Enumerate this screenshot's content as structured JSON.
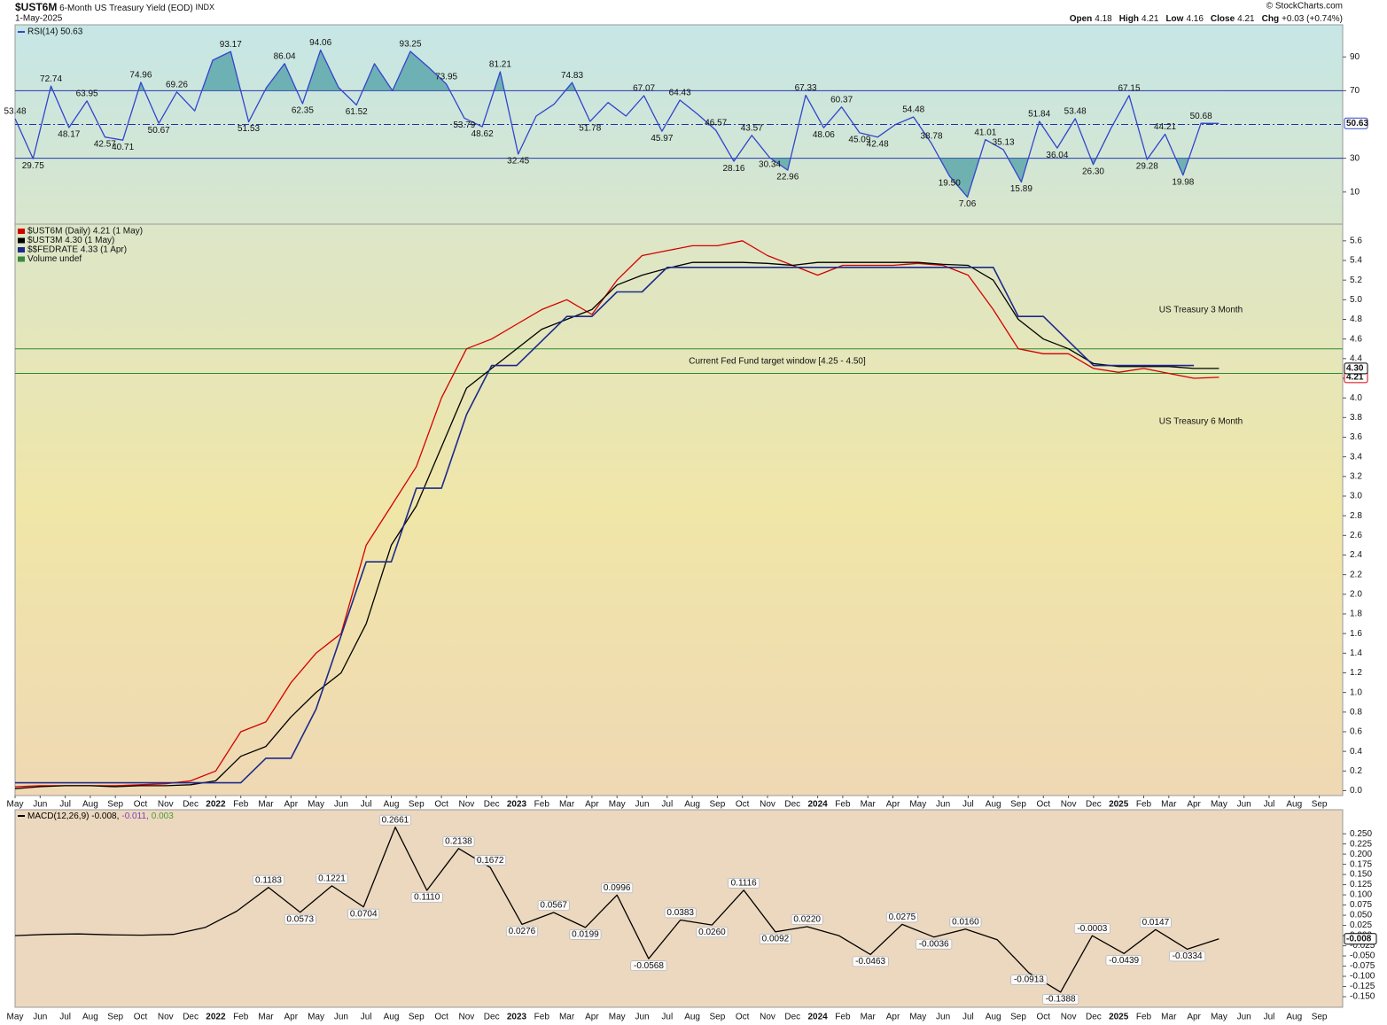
{
  "header": {
    "symbol": "$UST6M",
    "description": "6-Month US Treasury Yield (EOD)",
    "exchange": "INDX",
    "date": "1-May-2025",
    "quote": [
      {
        "label": "Open",
        "value": "4.18"
      },
      {
        "label": "High",
        "value": "4.21"
      },
      {
        "label": "Low",
        "value": "4.16"
      },
      {
        "label": "Close",
        "value": "4.21"
      },
      {
        "label": "Chg",
        "value": "+0.03 (+0.74%)"
      }
    ],
    "credit": "© StockCharts.com"
  },
  "chart_data": [
    {
      "type": "line",
      "title": "RSI(14) 50.63",
      "ylim": [
        -9,
        109
      ],
      "yticks": [
        10,
        30,
        70,
        90
      ],
      "levels": [
        30,
        70
      ],
      "center_line": 50,
      "fill_color": "#4e9fa6",
      "level_color": "#2233aa",
      "series": [
        {
          "color": "#3344cc",
          "last_label": "50.63",
          "values": [
            53.48,
            29.75,
            72.74,
            48.17,
            63.95,
            42.57,
            40.71,
            74.96,
            50.67,
            69.26,
            58,
            88,
            93.17,
            51.53,
            72,
            86.04,
            62.35,
            94.06,
            72,
            61.52,
            86,
            70,
            93.25,
            84,
            73.95,
            53.79,
            48.62,
            81.21,
            32.45,
            55,
            62,
            74.83,
            51.78,
            63,
            55,
            67.07,
            45.97,
            64.43,
            56,
            46.57,
            28.16,
            43.57,
            30.34,
            22.96,
            67.33,
            48.06,
            60.37,
            45.09,
            42.48,
            50,
            54.48,
            38.78,
            19.5,
            7.06,
            41.01,
            35.13,
            15.89,
            51.84,
            36.04,
            53.48,
            26.3,
            48,
            67.15,
            29.28,
            44.21,
            19.98,
            50.68,
            50.63
          ],
          "value_labels": [
            "53.48",
            "29.75",
            "72.74",
            "48.17",
            "63.95",
            "42.57",
            "40.71",
            "74.96",
            "50.67",
            "69.26",
            null,
            null,
            "93.17",
            "51.53",
            null,
            "86.04",
            "62.35",
            "94.06",
            null,
            "61.52",
            null,
            null,
            "93.25",
            null,
            "73.95",
            "53.79",
            "48.62",
            "81.21",
            "32.45",
            null,
            null,
            "74.83",
            "51.78",
            null,
            null,
            "67.07",
            "45.97",
            "64.43",
            null,
            "46.57",
            "28.16",
            "43.57",
            "30.34",
            "22.96",
            "67.33",
            "48.06",
            "60.37",
            "45.09",
            "42.48",
            null,
            "54.48",
            "38.78",
            "19.50",
            "7.06",
            "41.01",
            "35.13",
            "15.89",
            "51.84",
            "36.04",
            "53.48",
            "26.30",
            null,
            "67.15",
            "29.28",
            "44.21",
            "19.98",
            "50.68",
            null
          ]
        }
      ]
    },
    {
      "type": "line",
      "categories": [
        "May",
        "Jun",
        "Jul",
        "Aug",
        "Sep",
        "Oct",
        "Nov",
        "Dec",
        "2022",
        "Feb",
        "Mar",
        "Apr",
        "May",
        "Jun",
        "Jul",
        "Aug",
        "Sep",
        "Oct",
        "Nov",
        "Dec",
        "2023",
        "Feb",
        "Mar",
        "Apr",
        "May",
        "Jun",
        "Jul",
        "Aug",
        "Sep",
        "Oct",
        "Nov",
        "Dec",
        "2024",
        "Feb",
        "Mar",
        "Apr",
        "May",
        "Jun",
        "Jul",
        "Aug",
        "Sep",
        "Oct",
        "Nov",
        "Dec",
        "2025",
        "Feb",
        "Mar",
        "Apr",
        "May",
        "Jun",
        "Jul",
        "Aug",
        "Sep"
      ],
      "ylim": [
        -0.05,
        5.77
      ],
      "yticks": [
        {
          "value": 0,
          "label": "0.0"
        },
        0.2,
        0.4,
        0.6,
        0.8,
        {
          "value": 1,
          "label": "1.0"
        },
        1.2,
        1.4,
        1.6,
        1.8,
        {
          "value": 2,
          "label": "2.0"
        },
        2.2,
        2.4,
        2.6,
        2.8,
        {
          "value": 3,
          "label": "3.0"
        },
        3.2,
        3.4,
        3.6,
        3.8,
        {
          "value": 4,
          "label": "4.0"
        },
        4.2,
        4.4,
        4.6,
        4.8,
        {
          "value": 5,
          "label": "5.0"
        },
        5.2,
        5.4,
        5.6
      ],
      "bands": [
        4.25,
        4.5
      ],
      "band_color": "#2e8b2e",
      "band_label": "Current Fed Fund target window [4.25 - 4.50]",
      "annotations": [
        {
          "text": "US Treasury 3 Month",
          "color": "#111111"
        },
        {
          "text": "US Treasury 6 Month",
          "color": "#e01010"
        }
      ],
      "series": [
        {
          "name": "$UST6M (Daily) 4.21 (1 May)",
          "color": "#d40000",
          "last_label": "4.21",
          "values": [
            0.04,
            0.05,
            0.05,
            0.05,
            0.05,
            0.06,
            0.07,
            0.1,
            0.2,
            0.6,
            0.7,
            1.1,
            1.4,
            1.6,
            2.5,
            2.9,
            3.3,
            4.0,
            4.5,
            4.6,
            4.75,
            4.9,
            5.0,
            4.85,
            5.2,
            5.45,
            5.5,
            5.55,
            5.55,
            5.6,
            5.45,
            5.35,
            5.25,
            5.35,
            5.35,
            5.35,
            5.37,
            5.35,
            5.25,
            4.9,
            4.5,
            4.45,
            4.45,
            4.3,
            4.26,
            4.3,
            4.25,
            4.2,
            4.21,
            null,
            null,
            null,
            null
          ]
        },
        {
          "name": "$UST3M 4.30 (1 May)",
          "color": "#000000",
          "last_label": "4.30",
          "values": [
            0.02,
            0.04,
            0.05,
            0.05,
            0.04,
            0.05,
            0.05,
            0.06,
            0.1,
            0.35,
            0.45,
            0.75,
            1.0,
            1.2,
            1.7,
            2.5,
            2.9,
            3.5,
            4.1,
            4.3,
            4.5,
            4.7,
            4.8,
            4.9,
            5.15,
            5.25,
            5.32,
            5.38,
            5.38,
            5.38,
            5.37,
            5.35,
            5.38,
            5.38,
            5.38,
            5.38,
            5.38,
            5.36,
            5.35,
            5.2,
            4.8,
            4.6,
            4.5,
            4.35,
            4.32,
            4.32,
            4.32,
            4.3,
            4.3,
            null,
            null,
            null,
            null
          ]
        },
        {
          "name": "$$FEDRATE 4.33 (1 Apr)",
          "color": "#1c2a8c",
          "values": [
            0.08,
            0.08,
            0.08,
            0.08,
            0.08,
            0.08,
            0.08,
            0.08,
            0.08,
            0.08,
            0.33,
            0.33,
            0.83,
            1.58,
            2.33,
            2.33,
            3.08,
            3.08,
            3.83,
            4.33,
            4.33,
            4.58,
            4.83,
            4.83,
            5.08,
            5.08,
            5.33,
            5.33,
            5.33,
            5.33,
            5.33,
            5.33,
            5.33,
            5.33,
            5.33,
            5.33,
            5.33,
            5.33,
            5.33,
            5.33,
            4.83,
            4.83,
            4.58,
            4.33,
            4.33,
            4.33,
            4.33,
            4.33,
            null,
            null,
            null,
            null,
            null
          ]
        },
        {
          "name": "Volume undef",
          "color": "#3a8a3a"
        }
      ]
    },
    {
      "type": "line",
      "title_parts": [
        "MACD(12,26,9) -0.008,",
        "-0.011,",
        "0.003"
      ],
      "title_colors": [
        "#000000",
        "#7b3fb5",
        "#4a9a3a"
      ],
      "ylim": [
        -0.176,
        0.309
      ],
      "yticks": [
        {
          "value": 0.25,
          "label": "0.250"
        },
        0.225,
        {
          "value": 0.2,
          "label": "0.200"
        },
        0.175,
        {
          "value": 0.15,
          "label": "0.150"
        },
        0.125,
        {
          "value": 0.1,
          "label": "0.100"
        },
        0.075,
        {
          "value": 0.05,
          "label": "0.050"
        },
        0.025,
        {
          "value": 0,
          "label": "0.000"
        },
        -0.025,
        {
          "value": -0.05,
          "label": "-0.050"
        },
        -0.075,
        {
          "value": -0.1,
          "label": "-0.100"
        },
        -0.125,
        {
          "value": -0.15,
          "label": "-0.150"
        }
      ],
      "series": [
        {
          "color": "#000000",
          "last_label": "-0.008",
          "values": [
            0,
            0.003,
            0.004,
            0.002,
            0.001,
            0.003,
            0.02,
            0.06,
            0.1183,
            0.0573,
            0.1221,
            0.0704,
            0.2661,
            0.111,
            0.2138,
            0.1672,
            0.0276,
            0.0567,
            0.0199,
            0.0996,
            -0.0568,
            0.0383,
            0.026,
            0.1116,
            0.0092,
            0.022,
            0,
            -0.0463,
            0.0275,
            -0.0036,
            0.016,
            -0.01,
            -0.0913,
            -0.1388,
            -0.0003,
            -0.0439,
            0.0147,
            -0.0334,
            -0.008
          ],
          "value_labels": [
            null,
            null,
            null,
            null,
            null,
            null,
            null,
            null,
            "0.1183",
            "0.0573",
            "0.1221",
            "0.0704",
            "0.2661",
            "0.1110",
            "0.2138",
            "0.1672",
            "0.0276",
            "0.0567",
            "0.0199",
            "0.0996",
            "-0.0568",
            "0.0383",
            "0.0260",
            "0.1116",
            "0.0092",
            "0.0220",
            null,
            "-0.0463",
            "0.0275",
            "-0.0036",
            "0.0160",
            null,
            "-0.0913",
            "-0.1388",
            "-0.0003",
            "-0.0439",
            "0.0147",
            "-0.0334",
            null
          ]
        }
      ]
    }
  ]
}
